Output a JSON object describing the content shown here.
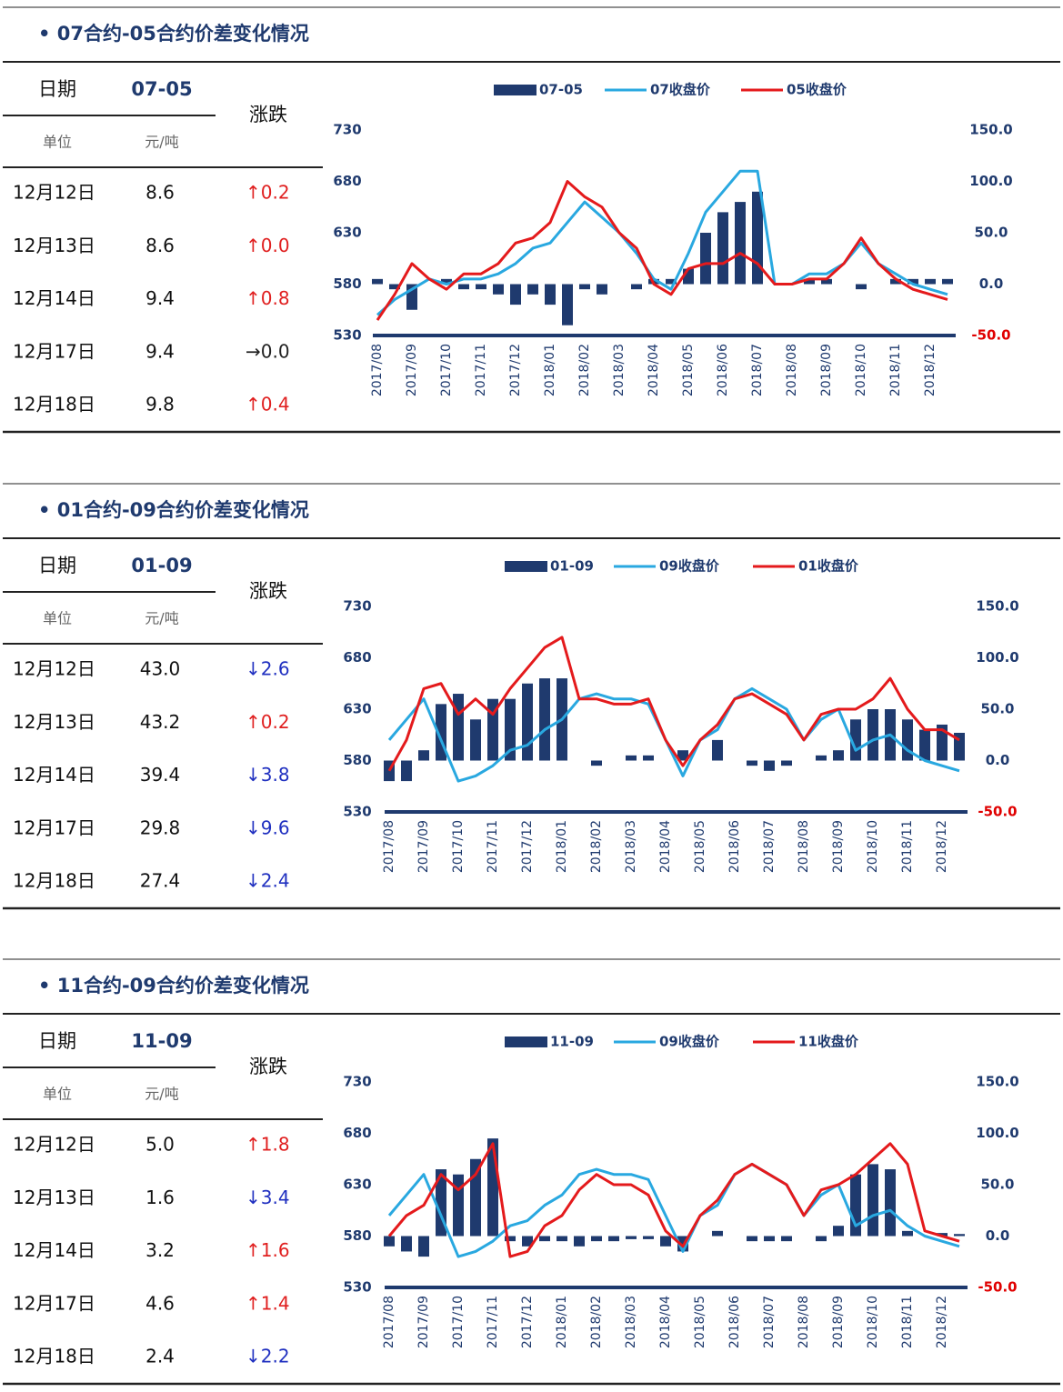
{
  "sections": [
    {
      "title": "• 07合约-05合约价差变化情况",
      "table": {
        "header": [
          "日期",
          "07-05"
        ],
        "change_header": "涨跌",
        "units": [
          "单位",
          "元/吨"
        ],
        "rows": [
          {
            "date": "12月12日",
            "value": "8.6",
            "change": "↑0.2",
            "color": "#e02020"
          },
          {
            "date": "12月13日",
            "value": "8.6",
            "change": "↑0.0",
            "color": "#e02020"
          },
          {
            "date": "12月14日",
            "value": "9.4",
            "change": "↑0.8",
            "color": "#e02020"
          },
          {
            "date": "12月17日",
            "value": "9.4",
            "change": "→0.0",
            "color": "#222222"
          },
          {
            "date": "12月18日",
            "value": "9.8",
            "change": "↑0.4",
            "color": "#e02020"
          }
        ]
      }
    },
    {
      "title": "• 01合约-09合约价差变化情况",
      "table": {
        "header": [
          "日期",
          "01-09"
        ],
        "change_header": "涨跌",
        "units": [
          "单位",
          "元/吨"
        ],
        "rows": [
          {
            "date": "12月12日",
            "value": "43.0",
            "change": "↓2.6",
            "color": "#2030c0"
          },
          {
            "date": "12月13日",
            "value": "43.2",
            "change": "↑0.2",
            "color": "#e02020"
          },
          {
            "date": "12月14日",
            "value": "39.4",
            "change": "↓3.8",
            "color": "#2030c0"
          },
          {
            "date": "12月17日",
            "value": "29.8",
            "change": "↓9.6",
            "color": "#2030c0"
          },
          {
            "date": "12月18日",
            "value": "27.4",
            "change": "↓2.4",
            "color": "#2030c0"
          }
        ]
      }
    },
    {
      "title": "• 11合约-09合约价差变化情况",
      "table": {
        "header": [
          "日期",
          "11-09"
        ],
        "change_header": "涨跌",
        "units": [
          "单位",
          "元/吨"
        ],
        "rows": [
          {
            "date": "12月12日",
            "value": "5.0",
            "change": "↑1.8",
            "color": "#e02020"
          },
          {
            "date": "12月13日",
            "value": "1.6",
            "change": "↓3.4",
            "color": "#2030c0"
          },
          {
            "date": "12月14日",
            "value": "3.2",
            "change": "↑1.6",
            "color": "#e02020"
          },
          {
            "date": "12月17日",
            "value": "4.6",
            "change": "↑1.4",
            "color": "#e02020"
          },
          {
            "date": "12月18日",
            "value": "2.4",
            "change": "↓2.2",
            "color": "#2030c0"
          }
        ]
      }
    }
  ],
  "chart_data": [
    {
      "type": "combo",
      "categories": [
        "2017/08",
        null,
        "2017/09",
        null,
        "2017/10",
        null,
        "2017/11",
        null,
        "2017/12",
        null,
        "2018/01",
        null,
        "2018/02",
        null,
        "2018/03",
        null,
        "2018/04",
        null,
        "2018/05",
        null,
        "2018/06",
        null,
        "2018/07",
        null,
        "2018/08",
        null,
        "2018/09",
        null,
        "2018/10",
        null,
        "2018/11",
        null,
        "2018/12",
        null
      ],
      "ylim": [
        530,
        730
      ],
      "yticks": [
        530,
        580,
        630,
        680,
        730
      ],
      "y2lim": [
        -50,
        150
      ],
      "y2ticks": [
        {
          "value": -50,
          "label": "-50.0"
        },
        {
          "value": 0,
          "label": "0.0"
        },
        {
          "value": 50,
          "label": "50.0"
        },
        {
          "value": 100,
          "label": "100.0"
        },
        {
          "value": 150,
          "label": "150.0"
        }
      ],
      "negative_tick_color": "#e00000",
      "series": [
        {
          "name": "07-05",
          "kind": "bar",
          "axis": "y2",
          "color": "#1f3a6e",
          "values": [
            5,
            -5,
            -25,
            0,
            5,
            -5,
            -5,
            -10,
            -20,
            -10,
            -20,
            -40,
            -5,
            -10,
            0,
            -5,
            5,
            5,
            15,
            50,
            70,
            80,
            90,
            0,
            0,
            5,
            5,
            0,
            -5,
            0,
            5,
            5,
            5,
            5
          ]
        },
        {
          "name": "07收盘价",
          "kind": "line",
          "color": "#29a8e0",
          "values": [
            550,
            565,
            575,
            585,
            580,
            585,
            585,
            590,
            600,
            615,
            620,
            640,
            660,
            645,
            630,
            610,
            585,
            575,
            610,
            650,
            670,
            690,
            690,
            580,
            580,
            590,
            590,
            600,
            620,
            600,
            590,
            580,
            575,
            570
          ]
        },
        {
          "name": "05收盘价",
          "kind": "line",
          "color": "#e41a1c",
          "values": [
            545,
            570,
            600,
            585,
            575,
            590,
            590,
            600,
            620,
            625,
            640,
            680,
            665,
            655,
            630,
            615,
            580,
            570,
            595,
            600,
            600,
            610,
            600,
            580,
            580,
            585,
            585,
            600,
            625,
            600,
            585,
            575,
            570,
            565
          ]
        }
      ]
    },
    {
      "type": "combo",
      "categories": [
        "2017/08",
        null,
        "2017/09",
        null,
        "2017/10",
        null,
        "2017/11",
        null,
        "2017/12",
        null,
        "2018/01",
        null,
        "2018/02",
        null,
        "2018/03",
        null,
        "2018/04",
        null,
        "2018/05",
        null,
        "2018/06",
        null,
        "2018/07",
        null,
        "2018/08",
        null,
        "2018/09",
        null,
        "2018/10",
        null,
        "2018/11",
        null,
        "2018/12",
        null
      ],
      "ylim": [
        530,
        730
      ],
      "yticks": [
        530,
        580,
        630,
        680,
        730
      ],
      "y2lim": [
        -50,
        150
      ],
      "y2ticks": [
        {
          "value": -50,
          "label": "-50.0"
        },
        {
          "value": 0,
          "label": "0.0"
        },
        {
          "value": 50,
          "label": "50.0"
        },
        {
          "value": 100,
          "label": "100.0"
        },
        {
          "value": 150,
          "label": "150.0"
        }
      ],
      "negative_tick_color": "#e00000",
      "series": [
        {
          "name": "01-09",
          "kind": "bar",
          "axis": "y2",
          "color": "#1f3a6e",
          "values": [
            -20,
            -20,
            10,
            55,
            65,
            40,
            60,
            60,
            75,
            80,
            80,
            0,
            -5,
            0,
            5,
            5,
            0,
            10,
            0,
            20,
            0,
            -5,
            -10,
            -5,
            0,
            5,
            10,
            40,
            50,
            50,
            40,
            30,
            35,
            27
          ]
        },
        {
          "name": "09收盘价",
          "kind": "line",
          "color": "#29a8e0",
          "values": [
            600,
            620,
            640,
            600,
            560,
            565,
            575,
            590,
            595,
            610,
            620,
            640,
            645,
            640,
            640,
            635,
            600,
            565,
            600,
            610,
            640,
            650,
            640,
            630,
            600,
            620,
            630,
            590,
            600,
            605,
            590,
            580,
            575,
            570
          ]
        },
        {
          "name": "01收盘价",
          "kind": "line",
          "color": "#e41a1c",
          "values": [
            570,
            600,
            650,
            655,
            625,
            640,
            625,
            650,
            670,
            690,
            700,
            640,
            640,
            635,
            635,
            640,
            600,
            575,
            600,
            615,
            640,
            645,
            635,
            625,
            600,
            625,
            630,
            630,
            640,
            660,
            630,
            610,
            610,
            600
          ]
        }
      ]
    },
    {
      "type": "combo",
      "categories": [
        "2017/08",
        null,
        "2017/09",
        null,
        "2017/10",
        null,
        "2017/11",
        null,
        "2017/12",
        null,
        "2018/01",
        null,
        "2018/02",
        null,
        "2018/03",
        null,
        "2018/04",
        null,
        "2018/05",
        null,
        "2018/06",
        null,
        "2018/07",
        null,
        "2018/08",
        null,
        "2018/09",
        null,
        "2018/10",
        null,
        "2018/11",
        null,
        "2018/12",
        null
      ],
      "ylim": [
        530,
        730
      ],
      "yticks": [
        530,
        580,
        630,
        680,
        730
      ],
      "y2lim": [
        -50,
        150
      ],
      "y2ticks": [
        {
          "value": -50,
          "label": "-50.0"
        },
        {
          "value": 0,
          "label": "0.0"
        },
        {
          "value": 50,
          "label": "50.0"
        },
        {
          "value": 100,
          "label": "100.0"
        },
        {
          "value": 150,
          "label": "150.0"
        }
      ],
      "negative_tick_color": "#e00000",
      "series": [
        {
          "name": "11-09",
          "kind": "bar",
          "axis": "y2",
          "color": "#1f3a6e",
          "values": [
            -10,
            -15,
            -20,
            65,
            60,
            75,
            95,
            -5,
            -10,
            -5,
            -5,
            -10,
            -5,
            -5,
            -3,
            -3,
            -10,
            -15,
            0,
            5,
            0,
            -5,
            -5,
            -5,
            0,
            -5,
            10,
            60,
            70,
            65,
            5,
            0,
            3,
            2
          ]
        },
        {
          "name": "09收盘价",
          "kind": "line",
          "color": "#29a8e0",
          "values": [
            600,
            620,
            640,
            600,
            560,
            565,
            575,
            590,
            595,
            610,
            620,
            640,
            645,
            640,
            640,
            635,
            600,
            565,
            600,
            610,
            640,
            650,
            640,
            630,
            600,
            620,
            630,
            590,
            600,
            605,
            590,
            580,
            575,
            570
          ]
        },
        {
          "name": "11收盘价",
          "kind": "line",
          "color": "#e41a1c",
          "values": [
            580,
            600,
            610,
            640,
            625,
            640,
            670,
            560,
            565,
            590,
            600,
            625,
            640,
            630,
            630,
            620,
            585,
            570,
            600,
            615,
            640,
            650,
            640,
            630,
            600,
            625,
            630,
            640,
            655,
            670,
            650,
            585,
            580,
            575
          ]
        }
      ]
    }
  ]
}
